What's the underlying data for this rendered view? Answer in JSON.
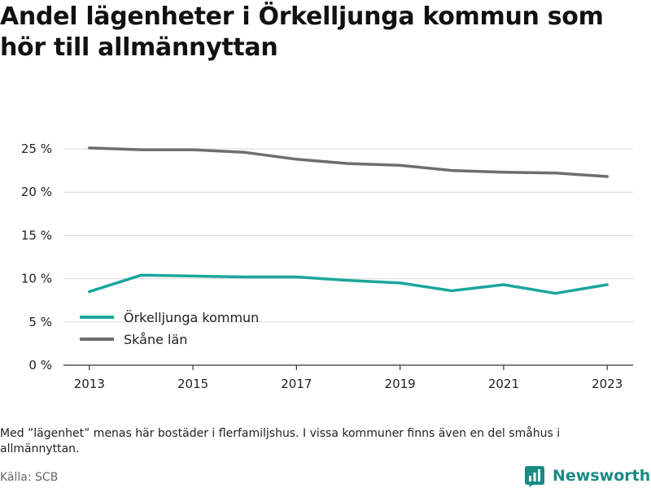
{
  "title": "Andel lägenheter i Örkelljunga kommun som hör till allmännyttan",
  "note": "Med ”lägenhet” menas här bostäder i flerfamiljshus. I vissa kommuner finns även en del småhus i allmännyttan.",
  "source": "Källa: SCB",
  "brand": {
    "name": "Newsworthy",
    "color": "#1a8a84"
  },
  "chart_data": {
    "type": "line",
    "x": [
      2013,
      2014,
      2015,
      2016,
      2017,
      2018,
      2019,
      2020,
      2021,
      2022,
      2023
    ],
    "x_tick_labels": [
      "2013",
      "2015",
      "2017",
      "2019",
      "2021",
      "2023"
    ],
    "y_tick_labels": [
      "0 %",
      "5 %",
      "10 %",
      "15 %",
      "20 %",
      "25 %"
    ],
    "ylim": [
      0,
      25
    ],
    "grid": true,
    "legend_placement": "bottom-left",
    "series": [
      {
        "name": "Örkelljunga kommun",
        "color": "#1aa69c",
        "values": [
          8.5,
          10.4,
          10.3,
          10.2,
          10.2,
          9.8,
          9.5,
          8.6,
          9.3,
          8.3,
          9.3
        ]
      },
      {
        "name": "Skåne län",
        "color": "#6e6e6e",
        "values": [
          25.1,
          24.9,
          24.9,
          24.6,
          23.8,
          23.3,
          23.1,
          22.5,
          22.3,
          22.2,
          21.8
        ]
      }
    ]
  }
}
